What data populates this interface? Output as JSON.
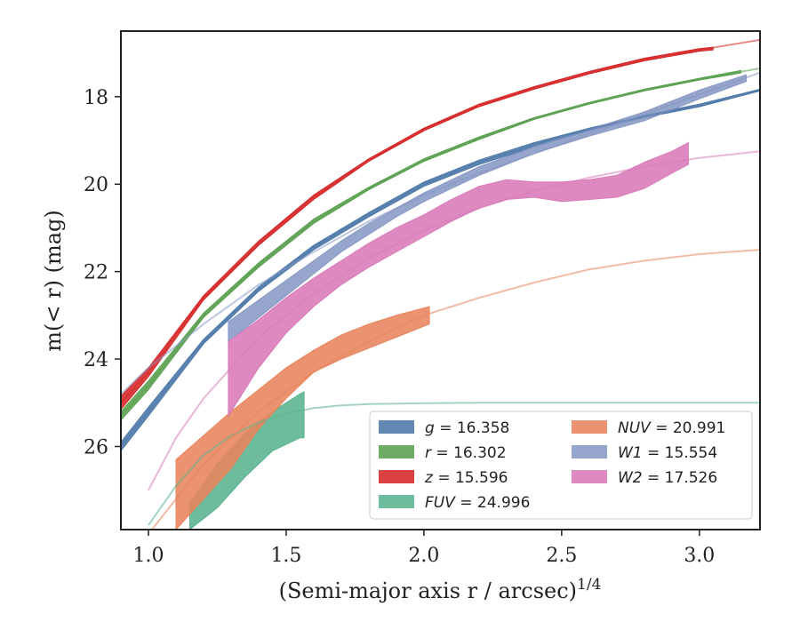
{
  "chart_data": {
    "type": "area",
    "xlabel": "(Semi-major axis r / arcsec)",
    "xlabel_power": "1/4",
    "ylabel": "m(< r) (mag)",
    "xlim": [
      0.9,
      3.22
    ],
    "ylim": [
      27.9,
      16.5
    ],
    "y_inverted": true,
    "xticks": [
      1.0,
      1.5,
      2.0,
      2.5,
      3.0
    ],
    "xtick_labels": [
      "1.0",
      "1.5",
      "2.0",
      "2.5",
      "3.0"
    ],
    "yticks": [
      18,
      20,
      22,
      24,
      26
    ],
    "ytick_labels": [
      "18",
      "20",
      "22",
      "24",
      "26"
    ],
    "grid": false,
    "legend_placement": "lower-right",
    "series": [
      {
        "name": "g = 16.358",
        "var": "g",
        "value": "16.358",
        "color": "#4c78a8",
        "model": {
          "x": [
            0.9,
            1.0,
            1.2,
            1.4,
            1.6,
            1.8,
            2.0,
            2.2,
            2.4,
            2.6,
            2.8,
            3.0,
            3.22
          ],
          "y": [
            26.0,
            25.2,
            23.6,
            22.4,
            21.45,
            20.7,
            20.0,
            19.5,
            19.1,
            18.75,
            18.45,
            18.2,
            17.85
          ]
        },
        "band": {
          "x": [
            0.9,
            1.0,
            1.2,
            1.4,
            1.6,
            1.8,
            2.0,
            2.2,
            2.4,
            2.6,
            2.8,
            3.0,
            3.22
          ],
          "lower": [
            25.9,
            25.1,
            23.55,
            22.35,
            21.4,
            20.65,
            19.95,
            19.45,
            19.05,
            18.72,
            18.42,
            18.17,
            17.83
          ],
          "upper": [
            26.1,
            25.3,
            23.65,
            22.45,
            21.5,
            20.75,
            20.05,
            19.55,
            19.15,
            18.78,
            18.48,
            18.23,
            17.87
          ]
        }
      },
      {
        "name": "r = 16.302",
        "var": "r",
        "value": "16.302",
        "color": "#59a14f",
        "model": {
          "x": [
            0.9,
            1.0,
            1.2,
            1.4,
            1.6,
            1.8,
            2.0,
            2.2,
            2.4,
            2.6,
            2.8,
            3.0,
            3.22
          ],
          "y": [
            25.3,
            24.6,
            23.0,
            21.85,
            20.85,
            20.1,
            19.45,
            18.95,
            18.5,
            18.15,
            17.85,
            17.6,
            17.35
          ]
        },
        "band": {
          "x": [
            0.9,
            1.0,
            1.2,
            1.4,
            1.6,
            1.8,
            2.0,
            2.2,
            2.4,
            2.6,
            2.8,
            3.0,
            3.15
          ],
          "lower": [
            25.2,
            24.5,
            22.95,
            21.8,
            20.8,
            20.07,
            19.42,
            18.92,
            18.48,
            18.13,
            17.83,
            17.58,
            17.4
          ],
          "upper": [
            25.4,
            24.7,
            23.05,
            21.9,
            20.9,
            20.13,
            19.48,
            18.98,
            18.52,
            18.17,
            17.87,
            17.62,
            17.46
          ]
        }
      },
      {
        "name": "z = 15.596",
        "var": "z",
        "value": "15.596",
        "color": "#d62728",
        "model": {
          "x": [
            0.9,
            1.0,
            1.2,
            1.4,
            1.6,
            1.8,
            2.0,
            2.2,
            2.4,
            2.6,
            2.8,
            3.0,
            3.22
          ],
          "y": [
            25.0,
            24.3,
            22.6,
            21.35,
            20.3,
            19.45,
            18.75,
            18.2,
            17.8,
            17.45,
            17.15,
            16.93,
            16.7
          ]
        },
        "band": {
          "x": [
            0.9,
            1.0,
            1.2,
            1.4,
            1.6,
            1.8,
            2.0,
            2.2,
            2.4,
            2.6,
            2.8,
            3.0,
            3.05
          ],
          "lower": [
            24.85,
            24.2,
            22.55,
            21.3,
            20.25,
            19.42,
            18.72,
            18.17,
            17.77,
            17.42,
            17.12,
            16.9,
            16.87
          ],
          "upper": [
            25.15,
            24.4,
            22.65,
            21.4,
            20.35,
            19.48,
            18.78,
            18.23,
            17.83,
            17.48,
            17.18,
            16.96,
            16.93
          ]
        }
      },
      {
        "name": "FUV = 24.996",
        "var": "FUV",
        "value": "24.996",
        "color": "#59b38e",
        "model": {
          "x": [
            1.0,
            1.1,
            1.2,
            1.3,
            1.4,
            1.5,
            1.6,
            1.7,
            1.8,
            2.0,
            2.2,
            2.5,
            3.0,
            3.22
          ],
          "y": [
            27.8,
            26.9,
            26.2,
            25.75,
            25.45,
            25.25,
            25.12,
            25.06,
            25.03,
            25.01,
            25.0,
            25.0,
            25.0,
            25.0
          ]
        },
        "band": {
          "x": [
            1.15,
            1.25,
            1.35,
            1.45,
            1.55,
            1.565
          ],
          "lower": [
            27.3,
            26.4,
            25.7,
            25.2,
            24.8,
            24.75
          ],
          "upper": [
            27.9,
            27.4,
            26.7,
            26.1,
            25.8,
            25.8
          ]
        }
      },
      {
        "name": "NUV = 20.991",
        "var": "NUV",
        "value": "20.991",
        "color": "#e8845c",
        "model": {
          "x": [
            1.0,
            1.2,
            1.4,
            1.6,
            1.8,
            2.0,
            2.2,
            2.4,
            2.6,
            2.8,
            3.0,
            3.22
          ],
          "y": [
            28.0,
            26.4,
            25.2,
            24.3,
            23.6,
            23.0,
            22.6,
            22.25,
            21.95,
            21.75,
            21.6,
            21.5
          ]
        },
        "band": {
          "x": [
            1.1,
            1.2,
            1.3,
            1.4,
            1.5,
            1.6,
            1.7,
            1.8,
            1.9,
            2.02
          ],
          "lower": [
            26.3,
            25.75,
            25.2,
            24.7,
            24.2,
            23.8,
            23.45,
            23.2,
            23.0,
            22.8
          ],
          "upper": [
            27.9,
            27.2,
            26.5,
            25.6,
            24.9,
            24.3,
            24.0,
            23.75,
            23.5,
            23.2
          ]
        }
      },
      {
        "name": "W1 = 15.554",
        "var": "W1",
        "value": "15.554",
        "color": "#8798c4",
        "model": {
          "x": [
            0.9,
            1.0,
            1.2,
            1.4,
            1.6,
            1.8,
            2.0,
            2.2,
            2.4,
            2.6,
            2.8,
            3.0,
            3.22
          ],
          "y": [
            24.8,
            24.2,
            23.2,
            22.3,
            21.55,
            20.85,
            20.25,
            19.75,
            19.3,
            18.85,
            18.4,
            17.95,
            17.45
          ]
        },
        "band": {
          "x": [
            1.29,
            1.4,
            1.5,
            1.6,
            1.7,
            1.8,
            1.9,
            2.0,
            2.2,
            2.4,
            2.6,
            2.8,
            3.0,
            3.17
          ],
          "lower": [
            23.15,
            22.65,
            22.2,
            21.75,
            21.3,
            20.9,
            20.55,
            20.2,
            19.6,
            19.15,
            18.75,
            18.35,
            17.85,
            17.5
          ],
          "upper": [
            23.6,
            23.05,
            22.55,
            22.05,
            21.55,
            21.15,
            20.75,
            20.4,
            19.8,
            19.3,
            18.9,
            18.55,
            18.05,
            17.65
          ]
        }
      },
      {
        "name": "W2 = 17.526",
        "var": "W2",
        "value": "17.526",
        "color": "#d97ab8",
        "model": {
          "x": [
            1.0,
            1.1,
            1.2,
            1.4,
            1.6,
            1.8,
            2.0,
            2.2,
            2.4,
            2.6,
            2.8,
            3.0,
            3.22
          ],
          "y": [
            27.0,
            25.8,
            24.9,
            23.5,
            22.5,
            21.7,
            21.05,
            20.55,
            20.15,
            19.85,
            19.6,
            19.4,
            19.25
          ]
        },
        "band": {
          "x": [
            1.29,
            1.4,
            1.5,
            1.6,
            1.7,
            1.8,
            1.9,
            2.0,
            2.1,
            2.2,
            2.3,
            2.4,
            2.5,
            2.6,
            2.7,
            2.8,
            2.9,
            2.96
          ],
          "lower": [
            23.6,
            23.1,
            22.6,
            22.15,
            21.75,
            21.35,
            21.0,
            20.7,
            20.35,
            20.05,
            19.9,
            19.95,
            19.95,
            19.9,
            19.8,
            19.5,
            19.25,
            19.05
          ],
          "upper": [
            25.3,
            24.2,
            23.4,
            22.8,
            22.3,
            21.9,
            21.55,
            21.2,
            20.85,
            20.55,
            20.35,
            20.3,
            20.4,
            20.35,
            20.3,
            20.1,
            19.75,
            19.55
          ]
        }
      }
    ]
  }
}
